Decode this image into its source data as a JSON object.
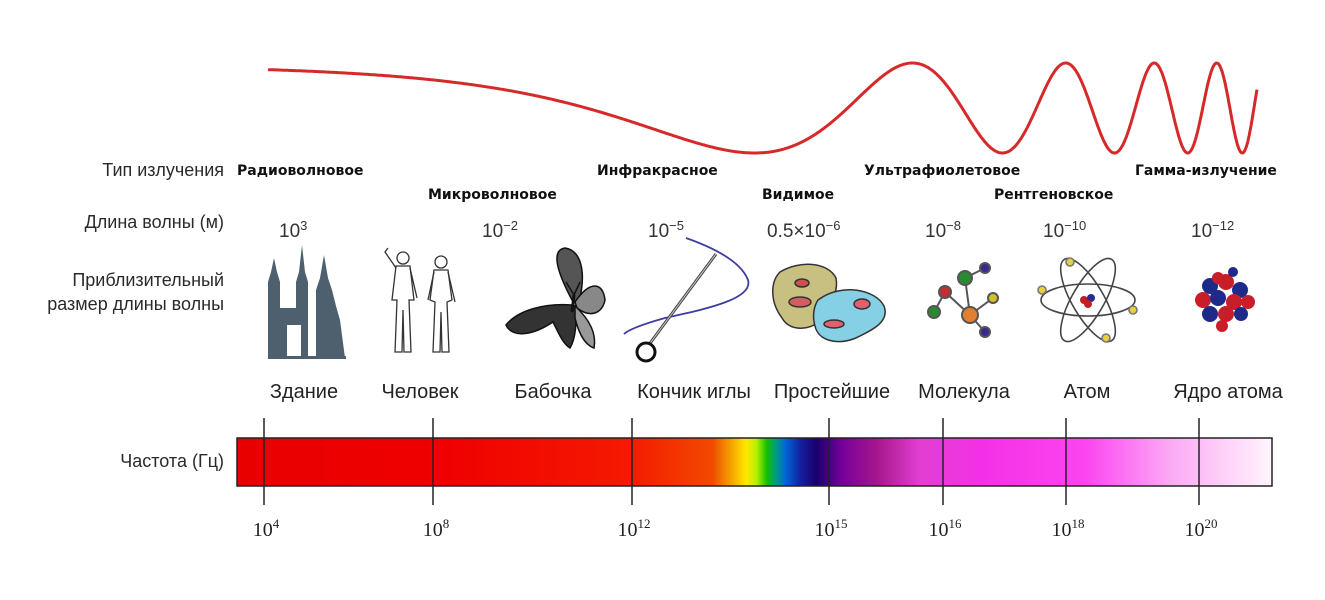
{
  "labels": {
    "type": "Тип излучения",
    "wavelength": "Длина волны (м)",
    "size": "Приблизительный размер длины волны",
    "frequency": "Частота (Гц)"
  },
  "radiation_types": [
    "Радиоволновое",
    "Микроволновое",
    "Инфракрасное",
    "Видимое",
    "Ультрафиолетовое",
    "Рентгеновское",
    "Гамма-излучение"
  ],
  "wavelengths": [
    {
      "base": "10",
      "exp": "3"
    },
    {
      "base": "10",
      "exp": "−2"
    },
    {
      "base": "10",
      "exp": "−5"
    },
    {
      "base": "0.5×10",
      "exp": "−6"
    },
    {
      "base": "10",
      "exp": "−8"
    },
    {
      "base": "10",
      "exp": "−10"
    },
    {
      "base": "10",
      "exp": "−12"
    }
  ],
  "objects": [
    "Здание",
    "Человек",
    "Бабочка",
    "Кончик иглы",
    "Простейшие",
    "Молекула",
    "Атом",
    "Ядро атома"
  ],
  "frequencies": [
    {
      "base": "10",
      "exp": "4"
    },
    {
      "base": "10",
      "exp": "8"
    },
    {
      "base": "10",
      "exp": "12"
    },
    {
      "base": "10",
      "exp": "15"
    },
    {
      "base": "10",
      "exp": "16"
    },
    {
      "base": "10",
      "exp": "18"
    },
    {
      "base": "10",
      "exp": "20"
    }
  ],
  "colors": {
    "wave": "#d62a2a",
    "bar_outline": "#222222"
  }
}
